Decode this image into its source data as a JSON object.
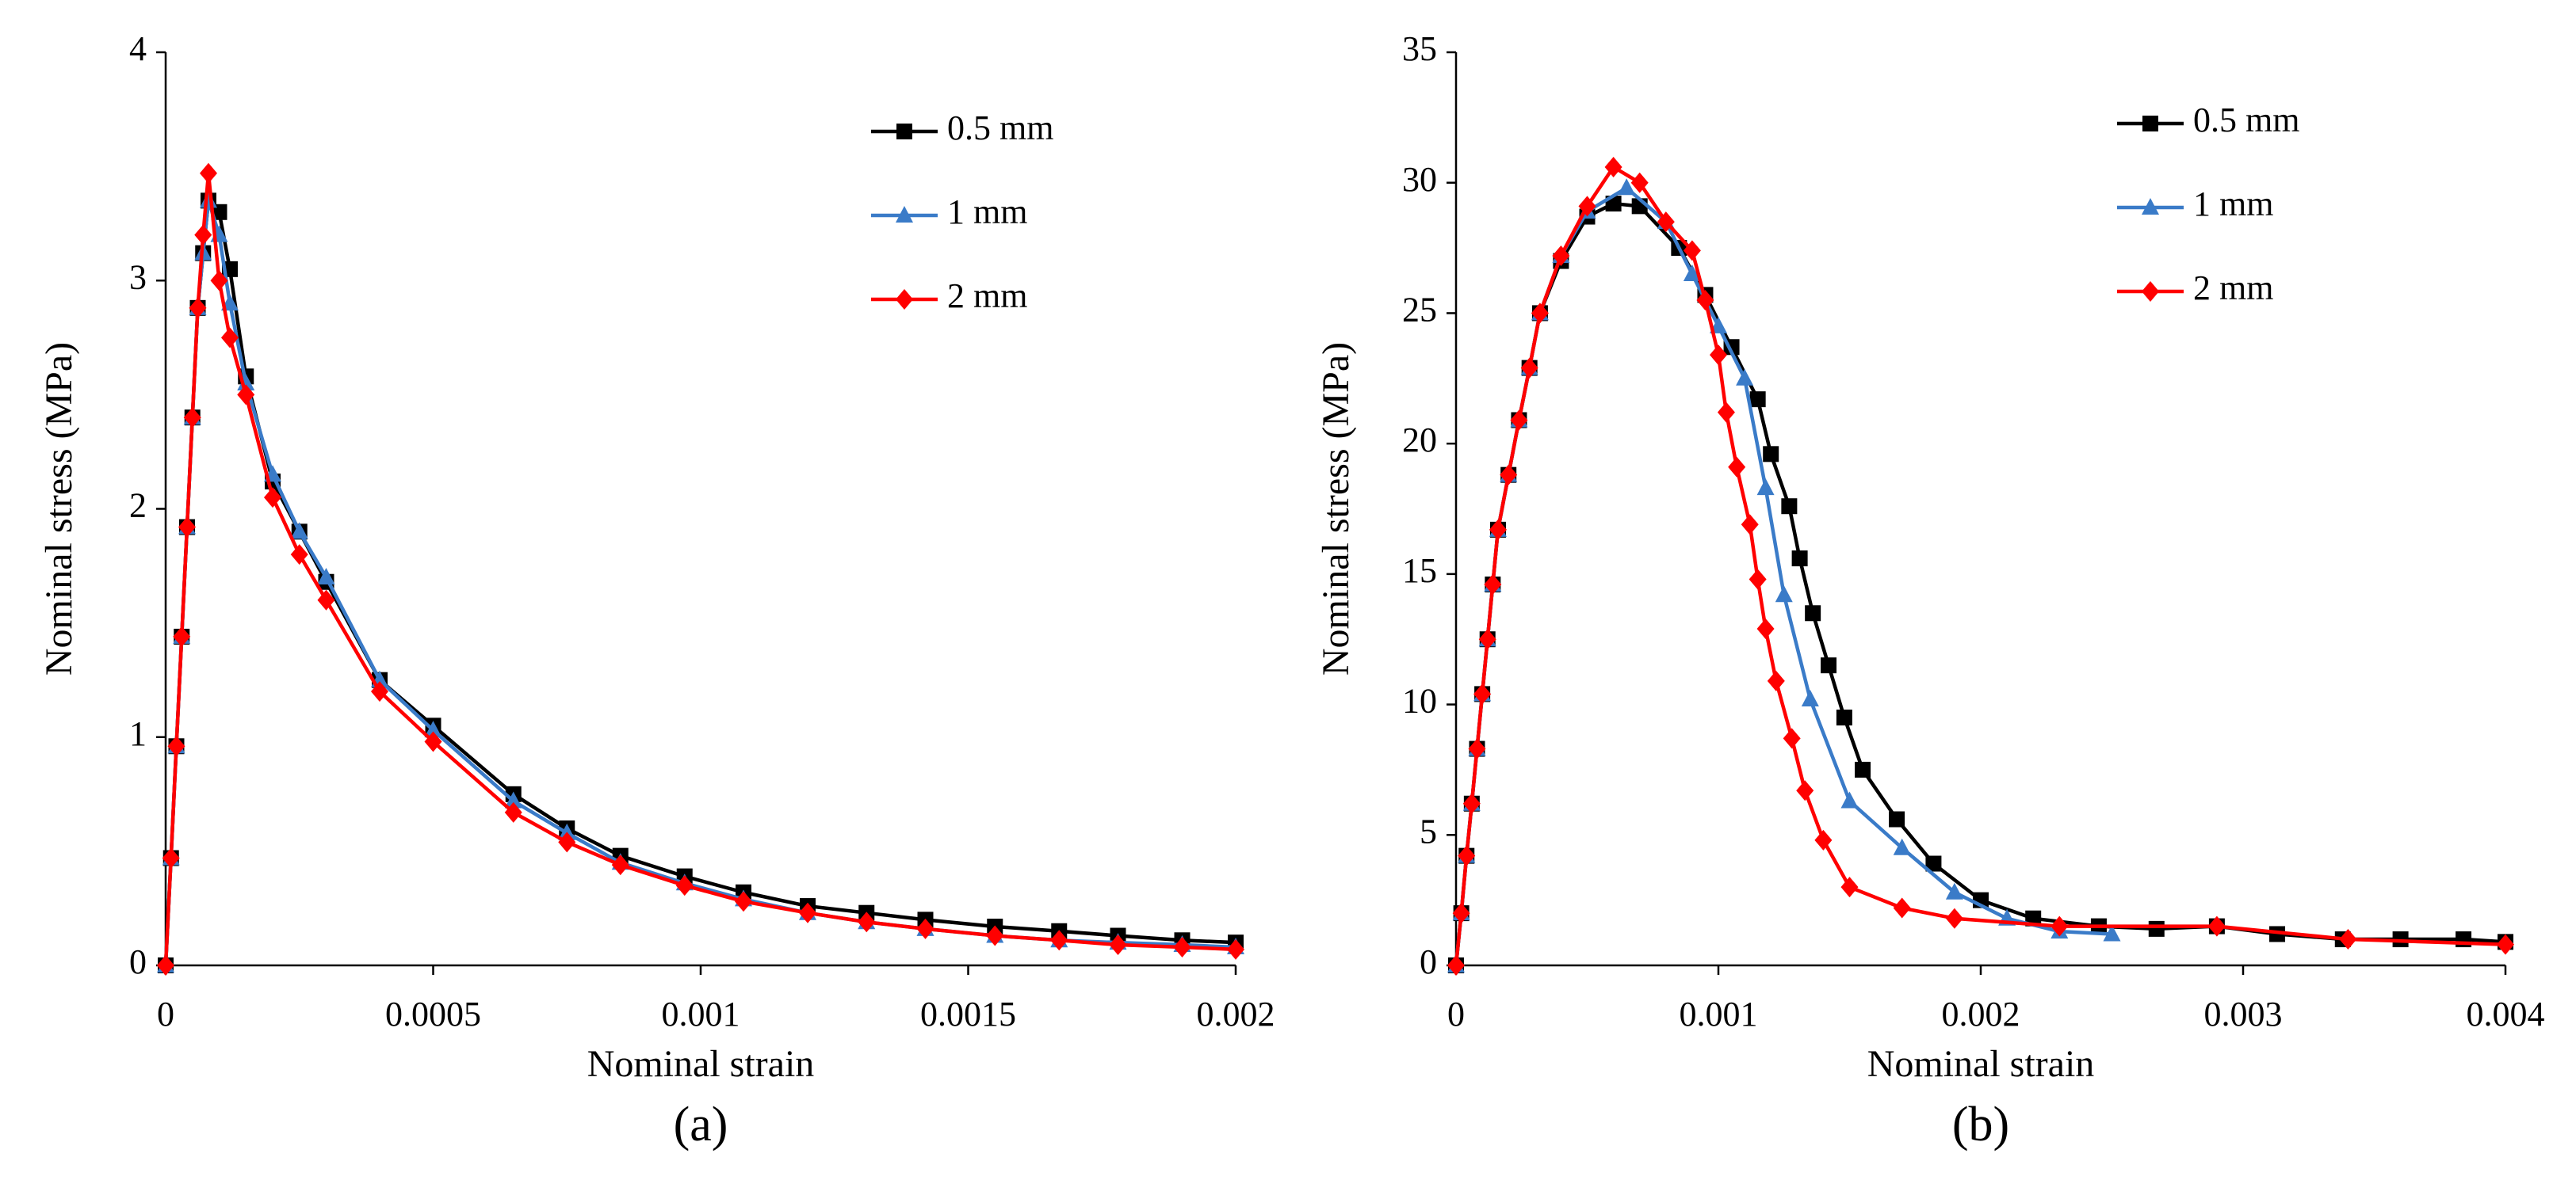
{
  "chart_data": [
    {
      "type": "line",
      "caption": "(a)",
      "xlabel": "Nominal strain",
      "ylabel": "Nominal stress (MPa)",
      "xlim": [
        0,
        0.002
      ],
      "xticks": [
        0,
        0.0005,
        0.001,
        0.0015,
        0.002
      ],
      "ylim": [
        0,
        4
      ],
      "yticks": [
        0,
        1,
        2,
        3,
        4
      ],
      "legend": "upper right",
      "series": [
        {
          "name": "0.5 mm",
          "color": "#000000",
          "marker": "square",
          "x": [
            0,
            1e-05,
            2e-05,
            3e-05,
            4e-05,
            5e-05,
            6e-05,
            7e-05,
            8e-05,
            0.0001,
            0.00012,
            0.00015,
            0.0002,
            0.00025,
            0.0003,
            0.0004,
            0.0005,
            0.00065,
            0.00075,
            0.00085,
            0.00097,
            0.00108,
            0.0012,
            0.00131,
            0.00142,
            0.00155,
            0.00167,
            0.00178,
            0.0019,
            0.002
          ],
          "values": [
            0,
            0.47,
            0.96,
            1.44,
            1.92,
            2.4,
            2.88,
            3.12,
            3.35,
            3.3,
            3.05,
            2.58,
            2.12,
            1.9,
            1.68,
            1.25,
            1.05,
            0.75,
            0.6,
            0.48,
            0.39,
            0.32,
            0.26,
            0.23,
            0.2,
            0.17,
            0.15,
            0.13,
            0.11,
            0.1
          ]
        },
        {
          "name": "1 mm",
          "color": "#3a7bc8",
          "marker": "triangle",
          "x": [
            0,
            1e-05,
            2e-05,
            3e-05,
            4e-05,
            5e-05,
            6e-05,
            7e-05,
            8e-05,
            0.0001,
            0.00012,
            0.00015,
            0.0002,
            0.00025,
            0.0003,
            0.0004,
            0.0005,
            0.00065,
            0.00075,
            0.00085,
            0.00097,
            0.00108,
            0.0012,
            0.00131,
            0.00142,
            0.00155,
            0.00167,
            0.00178,
            0.0019,
            0.002
          ],
          "values": [
            0,
            0.47,
            0.96,
            1.44,
            1.92,
            2.4,
            2.88,
            3.12,
            3.35,
            3.2,
            2.9,
            2.55,
            2.15,
            1.9,
            1.7,
            1.25,
            1.03,
            0.72,
            0.58,
            0.45,
            0.36,
            0.29,
            0.23,
            0.19,
            0.16,
            0.13,
            0.11,
            0.1,
            0.09,
            0.08
          ]
        },
        {
          "name": "2 mm",
          "color": "#ff0000",
          "marker": "diamond",
          "x": [
            0,
            1e-05,
            2e-05,
            3e-05,
            4e-05,
            5e-05,
            6e-05,
            7e-05,
            8e-05,
            0.0001,
            0.00012,
            0.00015,
            0.0002,
            0.00025,
            0.0003,
            0.0004,
            0.0005,
            0.00065,
            0.00075,
            0.00085,
            0.00097,
            0.00108,
            0.0012,
            0.00131,
            0.00142,
            0.00155,
            0.00167,
            0.00178,
            0.0019,
            0.002
          ],
          "values": [
            0,
            0.47,
            0.96,
            1.44,
            1.92,
            2.4,
            2.88,
            3.2,
            3.47,
            3.0,
            2.75,
            2.5,
            2.05,
            1.8,
            1.6,
            1.2,
            0.98,
            0.67,
            0.54,
            0.44,
            0.35,
            0.28,
            0.23,
            0.19,
            0.16,
            0.13,
            0.11,
            0.09,
            0.08,
            0.07
          ]
        }
      ]
    },
    {
      "type": "line",
      "caption": "(b)",
      "xlabel": "Nominal strain",
      "ylabel": "Nominal stress (MPa)",
      "xlim": [
        0,
        0.004
      ],
      "xticks": [
        0,
        0.001,
        0.002,
        0.003,
        0.004
      ],
      "ylim": [
        0,
        35
      ],
      "yticks": [
        0,
        5,
        10,
        15,
        20,
        25,
        30,
        35
      ],
      "legend": "upper right",
      "series": [
        {
          "name": "0.5 mm",
          "color": "#000000",
          "marker": "square",
          "x": [
            0,
            2e-05,
            4e-05,
            6e-05,
            8e-05,
            0.0001,
            0.00012,
            0.00014,
            0.00016,
            0.0002,
            0.00024,
            0.00028,
            0.00032,
            0.0004,
            0.0005,
            0.0006,
            0.0007,
            0.00085,
            0.00095,
            0.00105,
            0.00115,
            0.0012,
            0.00127,
            0.00131,
            0.00136,
            0.00142,
            0.00148,
            0.00155,
            0.00168,
            0.00182,
            0.002,
            0.0022,
            0.00245,
            0.00267,
            0.0029,
            0.00313,
            0.00338,
            0.0036,
            0.00384,
            0.004
          ],
          "values": [
            0,
            2,
            4.2,
            6.2,
            8.3,
            10.4,
            12.5,
            14.6,
            16.7,
            18.8,
            20.9,
            22.9,
            25,
            27,
            28.7,
            29.2,
            29.1,
            27.5,
            25.7,
            23.7,
            21.7,
            19.6,
            17.6,
            15.6,
            13.5,
            11.5,
            9.5,
            7.5,
            5.6,
            3.9,
            2.5,
            1.8,
            1.5,
            1.4,
            1.5,
            1.2,
            1.0,
            1.0,
            1.0,
            0.9
          ]
        },
        {
          "name": "1 mm",
          "color": "#3a7bc8",
          "marker": "triangle",
          "x": [
            0,
            2e-05,
            4e-05,
            6e-05,
            8e-05,
            0.0001,
            0.00012,
            0.00014,
            0.00016,
            0.0002,
            0.00024,
            0.00028,
            0.00032,
            0.0004,
            0.0005,
            0.00065,
            0.0008,
            0.0009,
            0.001,
            0.0011,
            0.00118,
            0.00125,
            0.00135,
            0.0015,
            0.0017,
            0.0019,
            0.0021,
            0.0023,
            0.0025
          ],
          "values": [
            0,
            2,
            4.2,
            6.2,
            8.3,
            10.4,
            12.5,
            14.6,
            16.7,
            18.8,
            20.9,
            22.9,
            25,
            27.2,
            28.9,
            29.8,
            28.5,
            26.5,
            24.5,
            22.5,
            18.3,
            14.2,
            10.2,
            6.3,
            4.5,
            2.8,
            1.8,
            1.3,
            1.2
          ]
        },
        {
          "name": "2 mm",
          "color": "#ff0000",
          "marker": "diamond",
          "x": [
            0,
            2e-05,
            4e-05,
            6e-05,
            8e-05,
            0.0001,
            0.00012,
            0.00014,
            0.00016,
            0.0002,
            0.00024,
            0.00028,
            0.00032,
            0.0004,
            0.0005,
            0.0006,
            0.0007,
            0.0008,
            0.0009,
            0.00095,
            0.001,
            0.00103,
            0.00107,
            0.00112,
            0.00115,
            0.00118,
            0.00122,
            0.00128,
            0.00133,
            0.0014,
            0.0015,
            0.0017,
            0.0019,
            0.0023,
            0.0029,
            0.0034,
            0.004
          ],
          "values": [
            0,
            2,
            4.2,
            6.2,
            8.3,
            10.4,
            12.5,
            14.6,
            16.7,
            18.8,
            20.9,
            22.9,
            25,
            27.2,
            29.1,
            30.6,
            30,
            28.5,
            27.4,
            25.5,
            23.4,
            21.2,
            19.1,
            16.9,
            14.8,
            12.9,
            10.9,
            8.7,
            6.7,
            4.8,
            3.0,
            2.2,
            1.8,
            1.5,
            1.5,
            1.0,
            0.8
          ]
        }
      ]
    }
  ]
}
